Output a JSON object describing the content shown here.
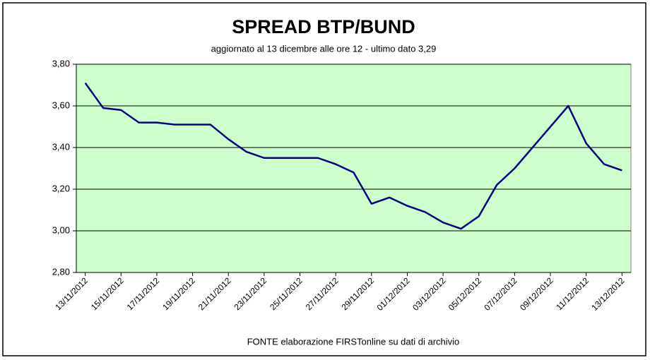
{
  "chart_data": {
    "type": "line",
    "title": "SPREAD  BTP/BUND",
    "subtitle": "aggiornato al 13  dicembre alle ore 12 - ultimo dato 3,29",
    "source": "FONTE elaborazione FIRSTonline su dati di archivio",
    "categories": [
      "13/11/2012",
      null,
      "15/11/2012",
      null,
      "17/11/2012",
      null,
      "19/11/2012",
      null,
      "21/11/2012",
      null,
      "23/11/2012",
      null,
      "25/11/2012",
      null,
      "27/11/2012",
      null,
      "29/11/2012",
      null,
      "01/12/2012",
      null,
      "03/12/2012",
      null,
      "05/12/2012",
      null,
      "07/12/2012",
      null,
      "09/12/2012",
      null,
      "11/12/2012",
      null,
      "13/12/2012"
    ],
    "series": [
      {
        "name": "SPREAD BTP/BUND",
        "color": "#000080",
        "values": [
          3.71,
          3.59,
          3.58,
          3.52,
          3.52,
          3.51,
          3.51,
          3.51,
          3.44,
          3.38,
          3.35,
          3.35,
          3.35,
          3.35,
          3.32,
          3.28,
          3.13,
          3.16,
          3.12,
          3.09,
          3.04,
          3.01,
          3.07,
          3.22,
          3.3,
          3.4,
          3.5,
          3.6,
          3.42,
          3.32,
          3.29
        ]
      }
    ],
    "ylim": [
      2.8,
      3.8
    ],
    "yticks": [
      {
        "value": 2.8,
        "label": "2,80"
      },
      {
        "value": 3.0,
        "label": "3,00"
      },
      {
        "value": 3.2,
        "label": "3,20"
      },
      {
        "value": 3.4,
        "label": "3,40"
      },
      {
        "value": 3.6,
        "label": "3,60"
      },
      {
        "value": 3.8,
        "label": "3,80"
      }
    ],
    "grid": true,
    "plot_background": "#ccffcc"
  }
}
